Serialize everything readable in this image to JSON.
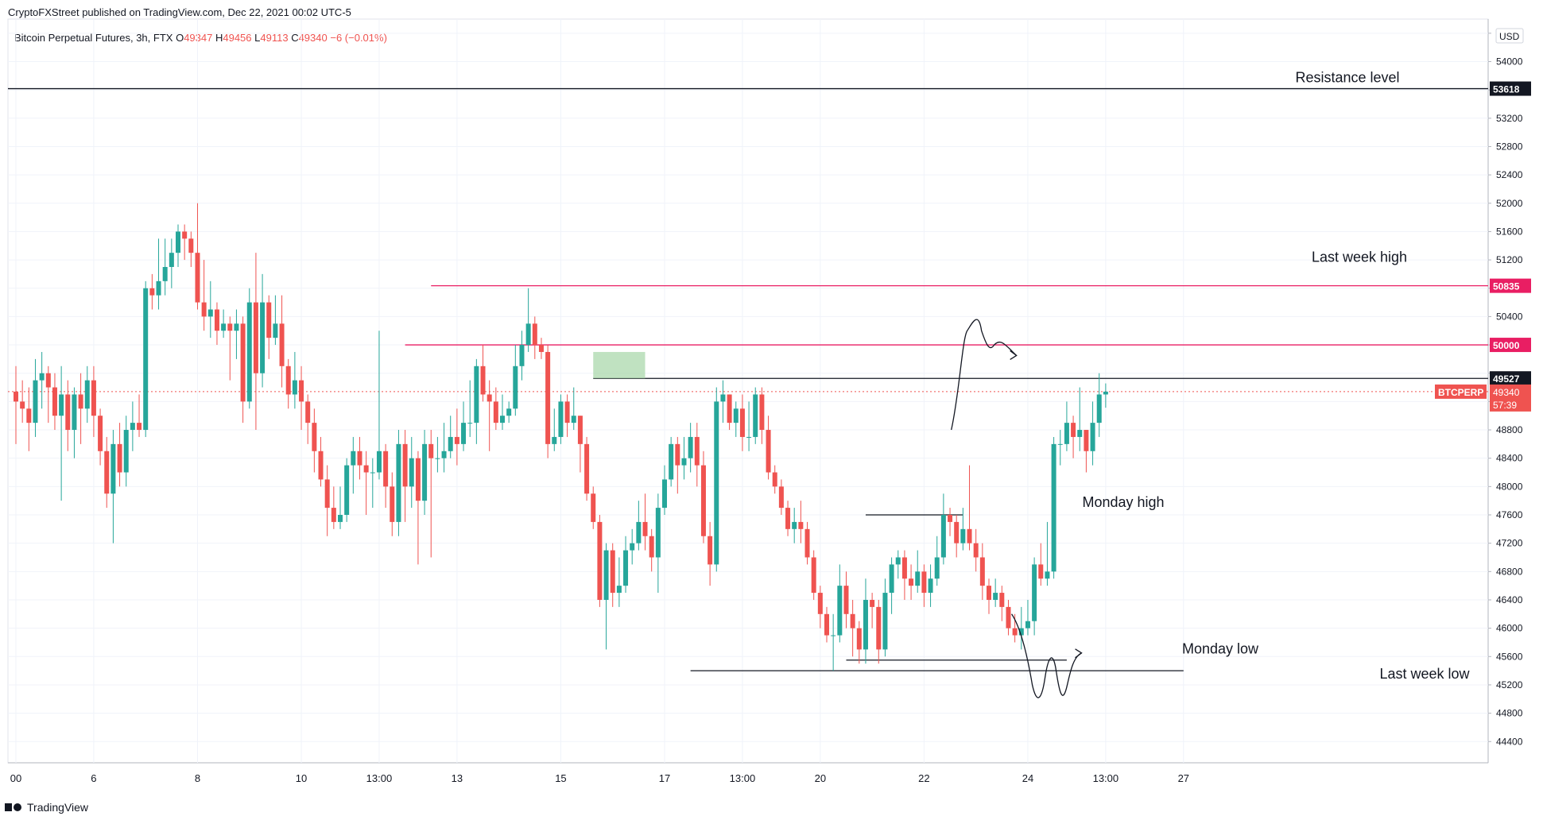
{
  "header": {
    "published": "CryptoFXStreet published on TradingView.com, Dec 22, 2021 00:02 UTC-5",
    "legend_name": "Bitcoin Perpetual Futures, 3h, FTX",
    "ohlc": [
      {
        "key": "O",
        "value": "49347"
      },
      {
        "key": "H",
        "value": "49456"
      },
      {
        "key": "L",
        "value": "49113"
      },
      {
        "key": "C",
        "value": "49340"
      }
    ],
    "change": "−6 (−0.01%)"
  },
  "footer": {
    "brand": "TradingView"
  },
  "colors": {
    "up": "#26a69a",
    "down": "#ef5350",
    "level": "#e91e63",
    "line": "#131722",
    "zone": "#a5d6a7"
  },
  "chart_data": {
    "type": "candlestick",
    "interval": "3h",
    "symbol": "BTCPERP",
    "currency": "USD",
    "ylim": [
      44100,
      54600
    ],
    "y_ticks": [
      44400,
      44800,
      45200,
      45600,
      46000,
      46400,
      46800,
      47200,
      47600,
      48000,
      48400,
      48800,
      49200,
      49600,
      50000,
      50400,
      50800,
      51200,
      51600,
      52000,
      52400,
      52800,
      53200,
      53600,
      54000,
      54400
    ],
    "y_tick_labels_visible": [
      "44400",
      "44800",
      "45200",
      "45600",
      "46000",
      "46400",
      "46800",
      "47200",
      "47600",
      "48000",
      "48400",
      "48800",
      "50400",
      "51200",
      "51600",
      "52000",
      "52400",
      "52800",
      "53200",
      "54000"
    ],
    "x_ticks": [
      {
        "label": "00",
        "bar": 0
      },
      {
        "label": "6",
        "bar": 12
      },
      {
        "label": "8",
        "bar": 28
      },
      {
        "label": "10",
        "bar": 44
      },
      {
        "label": "13:00",
        "bar": 56
      },
      {
        "label": "13",
        "bar": 68
      },
      {
        "label": "15",
        "bar": 84
      },
      {
        "label": "17",
        "bar": 100
      },
      {
        "label": "13:00",
        "bar": 112
      },
      {
        "label": "20",
        "bar": 124
      },
      {
        "label": "22",
        "bar": 140
      },
      {
        "label": "24",
        "bar": 156
      },
      {
        "label": "13:00",
        "bar": 168
      },
      {
        "label": "27",
        "bar": 180
      }
    ],
    "candles": [
      [
        49340,
        49200,
        49700,
        48600
      ],
      [
        49200,
        49100,
        49500,
        48900
      ],
      [
        49100,
        48900,
        49400,
        48500
      ],
      [
        48900,
        49500,
        49800,
        48700
      ],
      [
        49500,
        49600,
        49900,
        49100
      ],
      [
        49600,
        49400,
        49700,
        48900
      ],
      [
        49400,
        49000,
        49600,
        48800
      ],
      [
        49000,
        49300,
        49700,
        47800
      ],
      [
        49300,
        48800,
        49500,
        48500
      ],
      [
        48800,
        49300,
        49400,
        48400
      ],
      [
        49300,
        49100,
        49600,
        48600
      ],
      [
        49100,
        49500,
        49700,
        48900
      ],
      [
        49500,
        49000,
        49700,
        48700
      ],
      [
        49000,
        48500,
        49100,
        48300
      ],
      [
        48500,
        47900,
        48700,
        47700
      ],
      [
        47900,
        48600,
        48800,
        47200
      ],
      [
        48600,
        48200,
        48900,
        48000
      ],
      [
        48200,
        48800,
        49000,
        48000
      ],
      [
        48800,
        48900,
        49200,
        48500
      ],
      [
        48900,
        48800,
        49300,
        48700
      ],
      [
        48800,
        50800,
        50900,
        48700
      ],
      [
        50800,
        50700,
        51000,
        50500
      ],
      [
        50700,
        50900,
        51500,
        50500
      ],
      [
        50900,
        51100,
        51500,
        50700
      ],
      [
        51100,
        51300,
        51500,
        50800
      ],
      [
        51300,
        51600,
        51700,
        51100
      ],
      [
        51600,
        51500,
        51700,
        51200
      ],
      [
        51500,
        51300,
        51600,
        51100
      ],
      [
        51300,
        50600,
        52000,
        50500
      ],
      [
        50600,
        50400,
        51200,
        50200
      ],
      [
        50400,
        50500,
        50900,
        50100
      ],
      [
        50500,
        50200,
        50600,
        50000
      ],
      [
        50200,
        50300,
        50500,
        50100
      ],
      [
        50300,
        50200,
        50400,
        49500
      ],
      [
        50200,
        50300,
        50500,
        49800
      ],
      [
        50300,
        49200,
        50400,
        48900
      ],
      [
        49200,
        50600,
        50800,
        49100
      ],
      [
        50600,
        49600,
        51300,
        48800
      ],
      [
        49600,
        50600,
        51000,
        49400
      ],
      [
        50600,
        50100,
        50700,
        49800
      ],
      [
        50100,
        50300,
        50700,
        50000
      ],
      [
        50300,
        49700,
        50700,
        49400
      ],
      [
        49700,
        49300,
        49800,
        49100
      ],
      [
        49300,
        49500,
        49900,
        49100
      ],
      [
        49500,
        49200,
        49700,
        48800
      ],
      [
        49200,
        48900,
        49300,
        48600
      ],
      [
        48900,
        48500,
        49100,
        48200
      ],
      [
        48500,
        48100,
        48700,
        48000
      ],
      [
        48100,
        47700,
        48300,
        47300
      ],
      [
        47700,
        47500,
        48000,
        47400
      ],
      [
        47500,
        47600,
        48000,
        47400
      ],
      [
        47600,
        48300,
        48400,
        47500
      ],
      [
        48300,
        48500,
        48700,
        47900
      ],
      [
        48500,
        48300,
        48700,
        48100
      ],
      [
        48300,
        48200,
        48500,
        47600
      ],
      [
        48200,
        48200,
        48400,
        47700
      ],
      [
        48200,
        48500,
        50200,
        48100
      ],
      [
        48500,
        48000,
        48600,
        47700
      ],
      [
        48000,
        47500,
        48200,
        47300
      ],
      [
        47500,
        48600,
        48800,
        47300
      ],
      [
        48600,
        48000,
        48800,
        47500
      ],
      [
        48000,
        48400,
        48700,
        47700
      ],
      [
        48400,
        47800,
        48500,
        46900
      ],
      [
        47800,
        48600,
        48800,
        47600
      ],
      [
        48600,
        48400,
        48800,
        47000
      ],
      [
        48400,
        48400,
        48700,
        48200
      ],
      [
        48400,
        48500,
        48900,
        48200
      ],
      [
        48500,
        48700,
        49000,
        48400
      ],
      [
        48700,
        48600,
        49100,
        48300
      ],
      [
        48600,
        48900,
        49200,
        48500
      ],
      [
        48900,
        48900,
        49500,
        48700
      ],
      [
        48900,
        49700,
        49800,
        48600
      ],
      [
        49700,
        49300,
        50000,
        49200
      ],
      [
        49300,
        49200,
        49500,
        48500
      ],
      [
        49200,
        48900,
        49400,
        48800
      ],
      [
        48900,
        49000,
        49300,
        48800
      ],
      [
        49000,
        49100,
        49200,
        48900
      ],
      [
        49100,
        49700,
        50000,
        49000
      ],
      [
        49700,
        50000,
        50200,
        49500
      ],
      [
        50000,
        50300,
        50800,
        49900
      ],
      [
        50300,
        50000,
        50400,
        49800
      ],
      [
        50000,
        49900,
        50100,
        49800
      ],
      [
        49900,
        48600,
        50000,
        48400
      ],
      [
        48600,
        48700,
        49100,
        48500
      ],
      [
        48700,
        49200,
        49300,
        48600
      ],
      [
        49200,
        48900,
        49300,
        48700
      ],
      [
        48900,
        49000,
        49400,
        48800
      ],
      [
        49000,
        48600,
        49000,
        48200
      ],
      [
        48600,
        47900,
        48700,
        47800
      ],
      [
        47900,
        47500,
        48000,
        47400
      ],
      [
        47500,
        46400,
        47600,
        46300
      ],
      [
        46400,
        47100,
        47200,
        45700
      ],
      [
        47100,
        46500,
        47200,
        46300
      ],
      [
        46500,
        46600,
        47000,
        46300
      ],
      [
        46600,
        47100,
        47300,
        46500
      ],
      [
        47100,
        47200,
        47400,
        46900
      ],
      [
        47200,
        47500,
        47800,
        47100
      ],
      [
        47500,
        47300,
        47900,
        47100
      ],
      [
        47300,
        47000,
        47400,
        46800
      ],
      [
        47000,
        47700,
        47900,
        46500
      ],
      [
        47700,
        48100,
        48300,
        47600
      ],
      [
        48100,
        48600,
        48700,
        48000
      ],
      [
        48600,
        48300,
        48700,
        47900
      ],
      [
        48300,
        48400,
        48700,
        48100
      ],
      [
        48400,
        48700,
        48900,
        48200
      ],
      [
        48700,
        48300,
        48900,
        48000
      ],
      [
        48300,
        47300,
        48500,
        47200
      ],
      [
        47300,
        46900,
        47500,
        46600
      ],
      [
        46900,
        49200,
        49400,
        46800
      ],
      [
        49200,
        49300,
        49500,
        48900
      ],
      [
        49300,
        48900,
        49300,
        48800
      ],
      [
        48900,
        49100,
        49200,
        48700
      ],
      [
        49100,
        48700,
        49300,
        48500
      ],
      [
        48700,
        48700,
        49200,
        48500
      ],
      [
        48700,
        49300,
        49400,
        48600
      ],
      [
        49300,
        48800,
        49400,
        48600
      ],
      [
        48800,
        48200,
        49000,
        48100
      ],
      [
        48200,
        48000,
        48300,
        47900
      ],
      [
        48000,
        47700,
        48100,
        47600
      ],
      [
        47700,
        47400,
        47800,
        47300
      ],
      [
        47400,
        47500,
        47700,
        47200
      ],
      [
        47500,
        47400,
        47800,
        47200
      ],
      [
        47400,
        47000,
        47500,
        46900
      ],
      [
        47000,
        46500,
        47100,
        46400
      ],
      [
        46500,
        46200,
        46600,
        46000
      ],
      [
        46200,
        45900,
        46300,
        45800
      ],
      [
        45900,
        45900,
        46200,
        45400
      ],
      [
        45900,
        46600,
        46900,
        45800
      ],
      [
        46600,
        46200,
        46800,
        46000
      ],
      [
        46200,
        46000,
        46400,
        45600
      ],
      [
        46000,
        45700,
        46100,
        45500
      ],
      [
        45700,
        46400,
        46700,
        45500
      ],
      [
        46400,
        46300,
        46500,
        46000
      ],
      [
        46300,
        45700,
        46400,
        45500
      ],
      [
        45700,
        46500,
        46700,
        45600
      ],
      [
        46500,
        46900,
        47000,
        46200
      ],
      [
        46900,
        47000,
        47100,
        46700
      ],
      [
        47000,
        46700,
        47100,
        46400
      ],
      [
        46700,
        46600,
        46900,
        46400
      ],
      [
        46600,
        46800,
        47100,
        46500
      ],
      [
        46800,
        46500,
        46900,
        46300
      ],
      [
        46500,
        46700,
        46900,
        46300
      ],
      [
        46700,
        47000,
        47300,
        46600
      ],
      [
        47000,
        47600,
        47900,
        46900
      ],
      [
        47600,
        47500,
        47700,
        47300
      ],
      [
        47500,
        47200,
        47600,
        47000
      ],
      [
        47200,
        47400,
        47700,
        47100
      ],
      [
        47400,
        47200,
        48300,
        47100
      ],
      [
        47200,
        47000,
        47400,
        46800
      ],
      [
        47000,
        46600,
        47200,
        46400
      ],
      [
        46600,
        46400,
        46700,
        46200
      ],
      [
        46400,
        46500,
        46700,
        46300
      ],
      [
        46500,
        46300,
        46600,
        46100
      ],
      [
        46300,
        46000,
        46400,
        45900
      ],
      [
        46000,
        45900,
        46200,
        45800
      ],
      [
        45900,
        46000,
        46300,
        45700
      ],
      [
        46000,
        46100,
        46400,
        45900
      ],
      [
        46100,
        46900,
        47000,
        45900
      ],
      [
        46900,
        46700,
        47200,
        46600
      ],
      [
        46700,
        46800,
        47500,
        46600
      ],
      [
        46800,
        48600,
        48700,
        46700
      ],
      [
        48600,
        48600,
        48800,
        48300
      ],
      [
        48600,
        48900,
        49200,
        48500
      ],
      [
        48900,
        48700,
        49000,
        48400
      ],
      [
        48700,
        48800,
        49400,
        48500
      ],
      [
        48800,
        48500,
        48800,
        48200
      ],
      [
        48500,
        48900,
        49200,
        48300
      ],
      [
        48900,
        49300,
        49600,
        48700
      ],
      [
        49300,
        49340,
        49456,
        49113
      ]
    ],
    "levels": [
      {
        "label": "Resistance level",
        "price": 53618,
        "price_label": "53618",
        "color": "#131722"
      },
      {
        "label": "Last week high",
        "price": 50835,
        "price_label": "50835",
        "color": "#e91e63"
      },
      {
        "label": "",
        "price": 50000,
        "price_label": "50000",
        "color": "#e91e63"
      },
      {
        "label": "",
        "price": 49527,
        "price_label": "49527",
        "color": "#131722"
      },
      {
        "label": "Monday high",
        "price": 47600,
        "price_label": "",
        "color": "#131722"
      },
      {
        "label": "Monday low",
        "price": 45550,
        "price_label": "",
        "color": "#131722"
      },
      {
        "label": "Last week low",
        "price": 45400,
        "price_label": "",
        "color": "#131722"
      }
    ],
    "last_price": {
      "symbol": "BTCPERP",
      "price_label": "49340",
      "countdown": "57:39",
      "price": 49340
    }
  }
}
